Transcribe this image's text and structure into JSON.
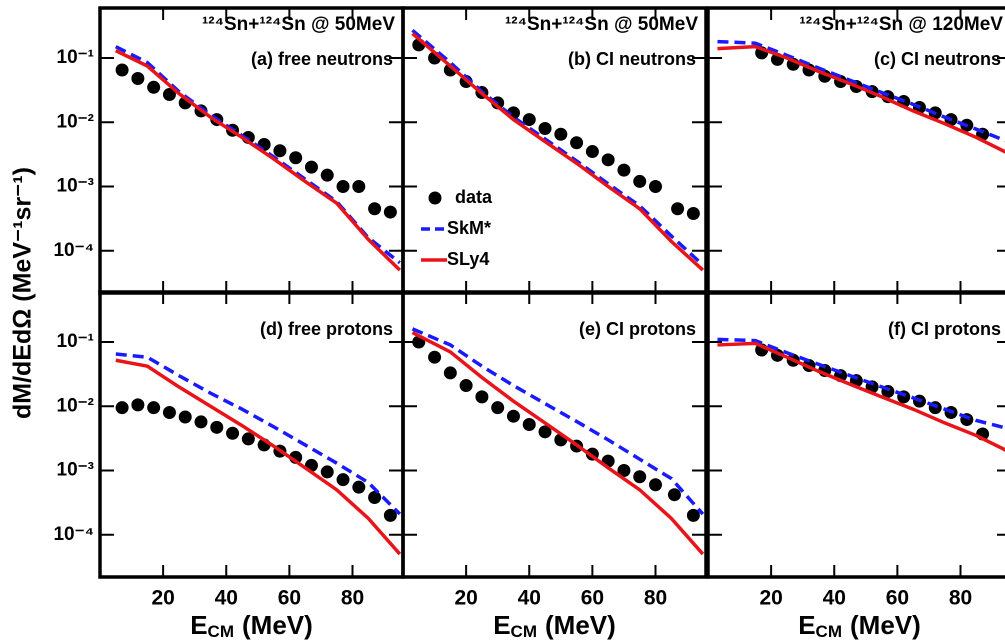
{
  "chart_data": [
    {
      "type": "scatter",
      "title": "¹²⁴Sn+¹²⁴Sn @ 50MeV",
      "panel_label": "(a) free neutrons",
      "ylabel": "dM/dEdΩ (MeV⁻¹sr⁻¹)",
      "yscale": "log",
      "xlim": [
        0,
        96
      ],
      "ylim": [
        2.2e-05,
        0.6
      ],
      "xticks": [
        20,
        40,
        60,
        80
      ],
      "yticks": [
        {
          "value": 0.1,
          "label": "10⁻¹"
        },
        {
          "value": 0.01,
          "label": "10⁻²"
        },
        {
          "value": 0.001,
          "label": "10⁻³"
        },
        {
          "value": 0.0001,
          "label": "10⁻⁴"
        }
      ],
      "series": [
        {
          "name": "data",
          "color": "#000000",
          "style": "markers",
          "x": [
            7,
            12,
            17,
            22,
            27,
            32,
            37,
            42,
            47,
            52,
            57,
            62,
            67,
            72,
            77,
            82,
            87,
            92
          ],
          "values": [
            0.065,
            0.048,
            0.035,
            0.027,
            0.02,
            0.015,
            0.011,
            0.0075,
            0.0058,
            0.0045,
            0.0036,
            0.0028,
            0.002,
            0.0015,
            0.001,
            0.001,
            0.00045,
            0.0004
          ]
        },
        {
          "name": "SkM*",
          "color": "#1a1aff",
          "style": "dashed",
          "x": [
            5,
            15,
            25,
            35,
            45,
            55,
            65,
            75,
            85,
            95
          ],
          "values": [
            0.15,
            0.085,
            0.03,
            0.013,
            0.0062,
            0.0029,
            0.0013,
            0.00058,
            0.00016,
            6.5e-05
          ]
        },
        {
          "name": "SLy4",
          "color": "#e8141a",
          "style": "solid",
          "x": [
            5,
            15,
            25,
            35,
            45,
            55,
            65,
            75,
            85,
            95
          ],
          "values": [
            0.13,
            0.075,
            0.028,
            0.012,
            0.0058,
            0.0027,
            0.0012,
            0.00055,
            0.00015,
            5e-05
          ]
        }
      ]
    },
    {
      "type": "scatter",
      "title": "¹²⁴Sn+¹²⁴Sn @ 50MeV",
      "panel_label": "(b) CI neutrons",
      "legend": true,
      "yscale": "log",
      "xlim": [
        0,
        96
      ],
      "ylim": [
        2.2e-05,
        0.6
      ],
      "xticks": [
        20,
        40,
        60,
        80
      ],
      "yticks": [
        0.1,
        0.01,
        0.001,
        0.0001
      ],
      "series": [
        {
          "name": "data",
          "color": "#000000",
          "style": "markers",
          "x": [
            5,
            10,
            15,
            20,
            25,
            30,
            35,
            40,
            45,
            50,
            55,
            60,
            65,
            70,
            75,
            80,
            87,
            92
          ],
          "values": [
            0.16,
            0.1,
            0.065,
            0.043,
            0.029,
            0.02,
            0.014,
            0.011,
            0.008,
            0.0065,
            0.0048,
            0.0035,
            0.0026,
            0.0018,
            0.0012,
            0.001,
            0.00045,
            0.00038
          ]
        },
        {
          "name": "SkM*",
          "color": "#1a1aff",
          "style": "dashed",
          "x": [
            3,
            15,
            25,
            35,
            45,
            55,
            65,
            75,
            85,
            95
          ],
          "values": [
            0.27,
            0.085,
            0.03,
            0.012,
            0.0055,
            0.0025,
            0.0011,
            0.0005,
            0.00017,
            6e-05
          ]
        },
        {
          "name": "SLy4",
          "color": "#e8141a",
          "style": "solid",
          "x": [
            3,
            15,
            25,
            35,
            45,
            55,
            65,
            75,
            85,
            95
          ],
          "values": [
            0.24,
            0.075,
            0.028,
            0.011,
            0.005,
            0.0023,
            0.001,
            0.00045,
            0.00014,
            5e-05
          ]
        }
      ]
    },
    {
      "type": "scatter",
      "title": "¹²⁴Sn+¹²⁴Sn @ 120MeV",
      "panel_label": "(c) CI neutrons",
      "yscale": "log",
      "xlim": [
        0,
        96
      ],
      "ylim": [
        2.2e-05,
        0.6
      ],
      "xticks": [
        20,
        40,
        60,
        80
      ],
      "yticks": [
        0.1,
        0.01,
        0.001,
        0.0001
      ],
      "series": [
        {
          "name": "data",
          "color": "#000000",
          "style": "markers",
          "x": [
            17,
            22,
            27,
            32,
            37,
            42,
            47,
            52,
            57,
            62,
            67,
            72,
            77,
            82,
            87
          ],
          "values": [
            0.12,
            0.095,
            0.08,
            0.065,
            0.052,
            0.043,
            0.036,
            0.03,
            0.025,
            0.021,
            0.017,
            0.014,
            0.011,
            0.009,
            0.0065
          ]
        },
        {
          "name": "SkM*",
          "color": "#1a1aff",
          "style": "dashed",
          "x": [
            3,
            15,
            25,
            35,
            45,
            55,
            65,
            75,
            85,
            95
          ],
          "values": [
            0.18,
            0.17,
            0.11,
            0.07,
            0.045,
            0.029,
            0.019,
            0.012,
            0.0078,
            0.005
          ]
        },
        {
          "name": "SLy4",
          "color": "#e8141a",
          "style": "solid",
          "x": [
            3,
            15,
            25,
            35,
            45,
            55,
            65,
            75,
            85,
            95
          ],
          "values": [
            0.14,
            0.15,
            0.1,
            0.062,
            0.04,
            0.025,
            0.015,
            0.0095,
            0.0058,
            0.0033
          ]
        }
      ]
    },
    {
      "type": "scatter",
      "panel_label": "(d) free protons",
      "xlabel": [
        "E",
        "CM",
        "(MeV)"
      ],
      "yscale": "log",
      "xlim": [
        0,
        96
      ],
      "ylim": [
        2.2e-05,
        0.6
      ],
      "xticks": [
        20,
        40,
        60,
        80
      ],
      "yticks": [
        {
          "value": 0.1,
          "label": "10⁻¹"
        },
        {
          "value": 0.01,
          "label": "10⁻²"
        },
        {
          "value": 0.001,
          "label": "10⁻³"
        },
        {
          "value": 0.0001,
          "label": "10⁻⁴"
        }
      ],
      "series": [
        {
          "name": "data",
          "color": "#000000",
          "style": "markers",
          "x": [
            7,
            12,
            17,
            22,
            27,
            32,
            37,
            42,
            47,
            52,
            57,
            62,
            67,
            72,
            77,
            82,
            87,
            92
          ],
          "values": [
            0.0095,
            0.0105,
            0.0095,
            0.008,
            0.0068,
            0.0057,
            0.0047,
            0.0038,
            0.0031,
            0.0025,
            0.002,
            0.0016,
            0.0012,
            0.00095,
            0.00072,
            0.00055,
            0.00038,
            0.0002
          ]
        },
        {
          "name": "SkM*",
          "color": "#1a1aff",
          "style": "dashed",
          "x": [
            5,
            15,
            25,
            35,
            45,
            55,
            65,
            75,
            85,
            95
          ],
          "values": [
            0.065,
            0.058,
            0.03,
            0.016,
            0.009,
            0.0048,
            0.0025,
            0.0013,
            0.00065,
            0.00021
          ]
        },
        {
          "name": "SLy4",
          "color": "#e8141a",
          "style": "solid",
          "x": [
            5,
            15,
            25,
            35,
            45,
            55,
            65,
            75,
            85,
            95
          ],
          "values": [
            0.052,
            0.042,
            0.02,
            0.01,
            0.005,
            0.0024,
            0.0011,
            0.0005,
            0.00018,
            5e-05
          ]
        }
      ]
    },
    {
      "type": "scatter",
      "panel_label": "(e) CI protons",
      "xlabel": [
        "E",
        "CM",
        "(MeV)"
      ],
      "yscale": "log",
      "xlim": [
        0,
        96
      ],
      "ylim": [
        2.2e-05,
        0.6
      ],
      "xticks": [
        20,
        40,
        60,
        80
      ],
      "yticks": [
        0.1,
        0.01,
        0.001,
        0.0001
      ],
      "series": [
        {
          "name": "data",
          "color": "#000000",
          "style": "markers",
          "x": [
            5,
            10,
            15,
            20,
            25,
            30,
            35,
            40,
            45,
            50,
            55,
            60,
            65,
            70,
            75,
            80,
            86,
            92
          ],
          "values": [
            0.1,
            0.058,
            0.033,
            0.021,
            0.014,
            0.0095,
            0.007,
            0.0052,
            0.004,
            0.003,
            0.0024,
            0.0018,
            0.0014,
            0.001,
            0.0008,
            0.0006,
            0.00042,
            0.0002
          ]
        },
        {
          "name": "SkM*",
          "color": "#1a1aff",
          "style": "dashed",
          "x": [
            3,
            15,
            25,
            35,
            45,
            55,
            65,
            75,
            85,
            95
          ],
          "values": [
            0.16,
            0.09,
            0.042,
            0.021,
            0.011,
            0.0058,
            0.003,
            0.0015,
            0.00075,
            0.00021
          ]
        },
        {
          "name": "SLy4",
          "color": "#e8141a",
          "style": "solid",
          "x": [
            3,
            15,
            25,
            35,
            45,
            55,
            65,
            75,
            85,
            95
          ],
          "values": [
            0.14,
            0.07,
            0.028,
            0.012,
            0.0055,
            0.0025,
            0.0011,
            0.0005,
            0.00018,
            5e-05
          ]
        }
      ]
    },
    {
      "type": "scatter",
      "panel_label": "(f) CI protons",
      "xlabel": [
        "E",
        "CM",
        "(MeV)"
      ],
      "yscale": "log",
      "xlim": [
        0,
        96
      ],
      "ylim": [
        2.2e-05,
        0.6
      ],
      "xticks": [
        20,
        40,
        60,
        80
      ],
      "yticks": [
        0.1,
        0.01,
        0.001,
        0.0001
      ],
      "series": [
        {
          "name": "data",
          "color": "#000000",
          "style": "markers",
          "x": [
            17,
            22,
            27,
            32,
            37,
            42,
            47,
            52,
            57,
            62,
            67,
            72,
            77,
            82,
            87
          ],
          "values": [
            0.075,
            0.062,
            0.052,
            0.043,
            0.036,
            0.03,
            0.025,
            0.02,
            0.017,
            0.014,
            0.012,
            0.0095,
            0.008,
            0.0062,
            0.0037
          ]
        },
        {
          "name": "SkM*",
          "color": "#1a1aff",
          "style": "dashed",
          "x": [
            3,
            15,
            25,
            35,
            45,
            55,
            65,
            75,
            85,
            95
          ],
          "values": [
            0.11,
            0.105,
            0.068,
            0.045,
            0.03,
            0.02,
            0.0135,
            0.009,
            0.006,
            0.0045
          ]
        },
        {
          "name": "SLy4",
          "color": "#e8141a",
          "style": "solid",
          "x": [
            3,
            15,
            25,
            35,
            45,
            55,
            65,
            75,
            85,
            95
          ],
          "values": [
            0.09,
            0.095,
            0.058,
            0.035,
            0.022,
            0.014,
            0.009,
            0.0055,
            0.0035,
            0.002
          ]
        }
      ]
    }
  ]
}
